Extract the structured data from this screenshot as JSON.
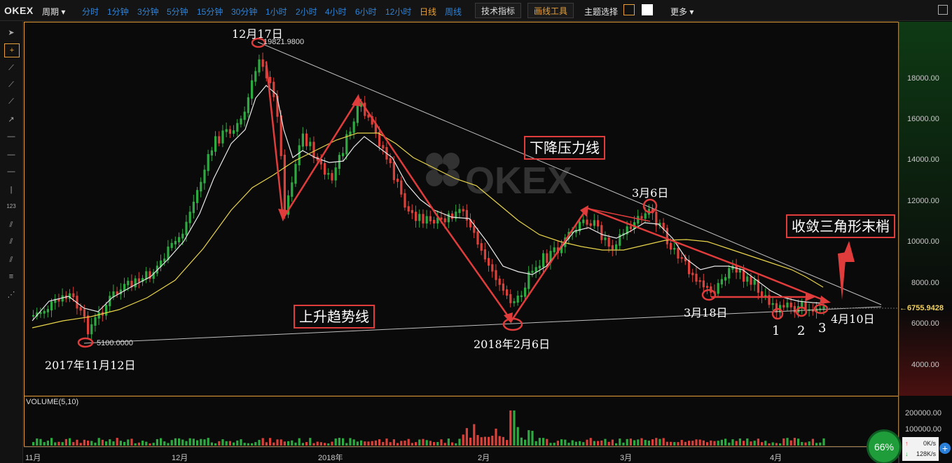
{
  "topbar": {
    "logo": "OKEX",
    "period_label": "周期 ▾",
    "timeframes": [
      "分时",
      "1分钟",
      "3分钟",
      "5分钟",
      "15分钟",
      "30分钟",
      "1小时",
      "2小时",
      "4小时",
      "6小时",
      "12小时",
      "日线",
      "周线"
    ],
    "active_timeframe": "日线",
    "indicator_button": "技术指标",
    "drawing_button": "画线工具",
    "theme_label": "主题选择",
    "more_label": "更多 ▾"
  },
  "chart": {
    "watermark": "OKEX",
    "volume_label": "VOLUME(5,10)",
    "current_price": "6755.9428",
    "high_label": "19821.9800",
    "low_label": "5100.0000",
    "y_ticks": [
      "18000.00",
      "16000.00",
      "14000.00",
      "12000.00",
      "10000.00",
      "8000.00",
      "6000.00",
      "4000.00"
    ],
    "vol_ticks": [
      "200000.00",
      "100000.00"
    ],
    "x_ticks": [
      "11月",
      "12月",
      "2018年",
      "2月",
      "3月",
      "4月"
    ]
  },
  "annotations": {
    "dec17": "12月17日",
    "downtrend": "下降压力线",
    "mar6": "3月6日",
    "triangle_end": "收敛三角形末梢",
    "uptrend": "上升趋势线",
    "mar18": "3月18日",
    "feb6": "2018年2月6日",
    "nov12": "2017年11月12日",
    "apr10": "4月10日",
    "n1": "1",
    "n2": "2",
    "n3": "3"
  },
  "status": {
    "percent": "66%",
    "up_speed": "0K/s",
    "down_speed": "128K/s"
  },
  "colors": {
    "up": "#2faa42",
    "down": "#d9413a",
    "ma_white": "#e8e8e8",
    "ma_yellow": "#e8d44a",
    "annotation": "#e03c3c",
    "accent_blue": "#2f82d6"
  }
}
